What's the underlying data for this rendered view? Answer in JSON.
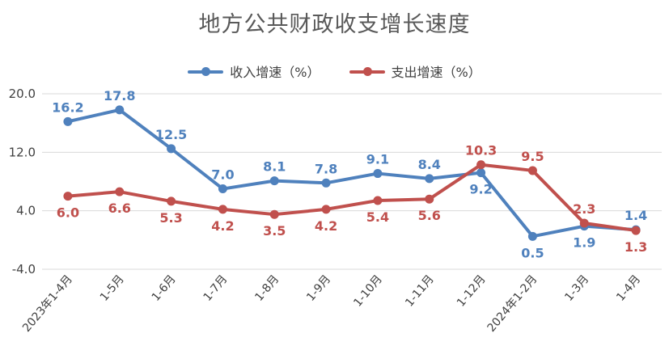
{
  "chart_data": {
    "type": "line",
    "title": "地方公共财政收支增长速度",
    "categories": [
      "2023年1-4月",
      "1-5月",
      "1-6月",
      "1-7月",
      "1-8月",
      "1-9月",
      "1-10月",
      "1-11月",
      "1-12月",
      "2024年1-2月",
      "1-3月",
      "1-4月"
    ],
    "ylim": [
      -4.0,
      20.0
    ],
    "yticks": [
      "20.0",
      "12.0",
      "4.0",
      "-4.0"
    ],
    "ytick_values": [
      20,
      12,
      4,
      -4
    ],
    "grid": true,
    "legend_position": "top-center",
    "series": [
      {
        "name": "收入增速（%）",
        "color": "#4f81bd",
        "values": [
          16.2,
          17.8,
          12.5,
          7.0,
          8.1,
          7.8,
          9.1,
          8.4,
          9.2,
          0.5,
          1.9,
          1.4
        ],
        "label_positions": [
          "above",
          "above",
          "above",
          "above",
          "above",
          "above",
          "above",
          "above",
          "below",
          "below",
          "below",
          "above"
        ],
        "labels": [
          "16.2",
          "17.8",
          "12.5",
          "7.0",
          "8.1",
          "7.8",
          "9.1",
          "8.4",
          "9.2",
          "0.5",
          "1.9",
          "1.4"
        ]
      },
      {
        "name": "支出增速（%）",
        "color": "#c0504d",
        "values": [
          6.0,
          6.6,
          5.3,
          4.2,
          3.5,
          4.2,
          5.4,
          5.6,
          10.3,
          9.5,
          2.3,
          1.3
        ],
        "label_positions": [
          "below",
          "below",
          "below",
          "below",
          "below",
          "below",
          "below",
          "below",
          "above",
          "above",
          "above",
          "below"
        ],
        "labels": [
          "6.0",
          "6.6",
          "5.3",
          "4.2",
          "3.5",
          "4.2",
          "5.4",
          "5.6",
          "10.3",
          "9.5",
          "2.3",
          "1.3"
        ]
      }
    ]
  }
}
